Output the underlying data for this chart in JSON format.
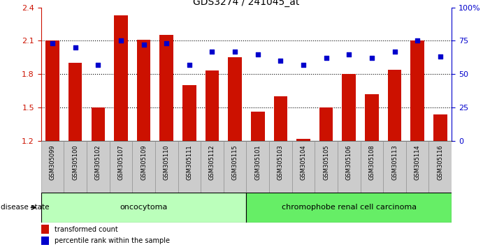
{
  "title": "GDS3274 / 241045_at",
  "samples": [
    "GSM305099",
    "GSM305100",
    "GSM305102",
    "GSM305107",
    "GSM305109",
    "GSM305110",
    "GSM305111",
    "GSM305112",
    "GSM305115",
    "GSM305101",
    "GSM305103",
    "GSM305104",
    "GSM305105",
    "GSM305106",
    "GSM305108",
    "GSM305113",
    "GSM305114",
    "GSM305116"
  ],
  "bar_values": [
    2.1,
    1.9,
    1.5,
    2.33,
    2.11,
    2.15,
    1.7,
    1.83,
    1.95,
    1.46,
    1.6,
    1.22,
    1.5,
    1.8,
    1.62,
    1.84,
    2.1,
    1.44
  ],
  "dot_values": [
    73,
    70,
    57,
    75,
    72,
    73,
    57,
    67,
    67,
    65,
    60,
    57,
    62,
    65,
    62,
    67,
    75,
    63
  ],
  "ylim_left": [
    1.2,
    2.4
  ],
  "ylim_right": [
    0,
    100
  ],
  "yticks_left": [
    1.2,
    1.5,
    1.8,
    2.1,
    2.4
  ],
  "yticks_right": [
    0,
    25,
    50,
    75,
    100
  ],
  "ytick_labels_right": [
    "0",
    "25",
    "50",
    "75",
    "100%"
  ],
  "bar_color": "#cc1100",
  "dot_color": "#0000cc",
  "group1_label": "oncocytoma",
  "group2_label": "chromophobe renal cell carcinoma",
  "group1_count": 9,
  "group2_count": 9,
  "group1_color": "#bbffbb",
  "group2_color": "#66ee66",
  "disease_state_label": "disease state",
  "legend_bar": "transformed count",
  "legend_dot": "percentile rank within the sample",
  "background_color": "#ffffff",
  "xticklabel_bg": "#cccccc"
}
